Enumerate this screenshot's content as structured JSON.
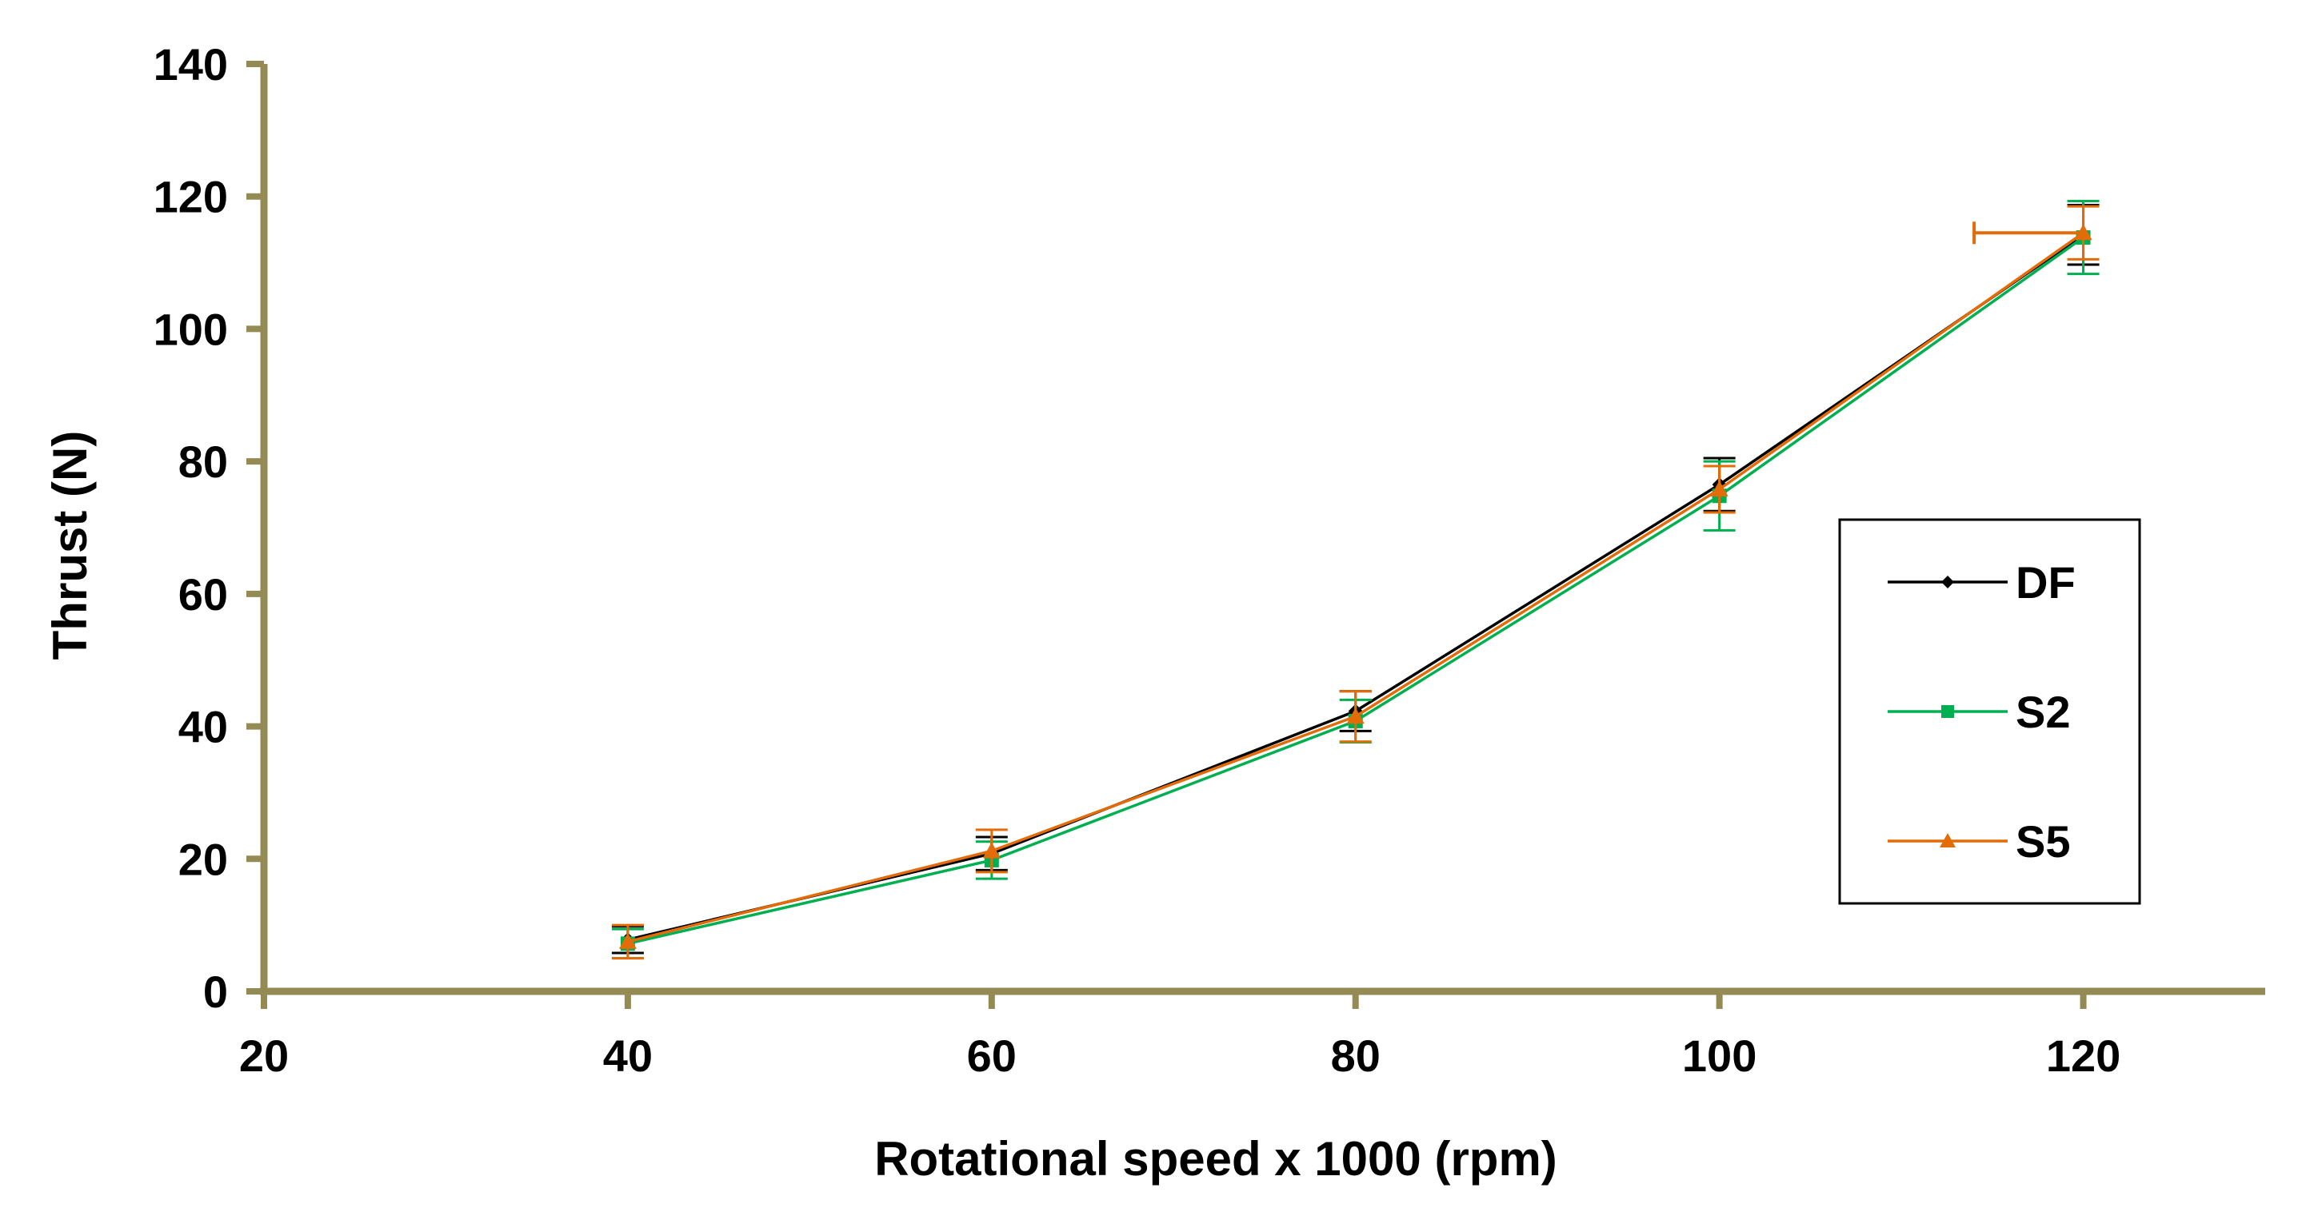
{
  "chart_data": {
    "type": "line",
    "title": "",
    "xlabel": "Rotational speed x 1000 (rpm)",
    "ylabel": "Thrust (N)",
    "xlim": [
      20,
      130
    ],
    "ylim": [
      0,
      140
    ],
    "xticks": [
      20,
      40,
      60,
      80,
      100,
      120
    ],
    "yticks": [
      0,
      20,
      40,
      60,
      80,
      100,
      120,
      140
    ],
    "grid": false,
    "legend_position": "right",
    "axis_color": "#948A54",
    "series": [
      {
        "name": "DF",
        "color": "#000000",
        "marker": "diamond",
        "x": [
          40,
          60,
          80,
          100,
          120
        ],
        "y": [
          7.8,
          20.8,
          42.3,
          76.5,
          114.2
        ],
        "err": [
          2.0,
          2.5,
          3.0,
          4.0,
          4.5
        ]
      },
      {
        "name": "S2",
        "color": "#00B050",
        "marker": "square",
        "x": [
          40,
          60,
          80,
          100,
          120
        ],
        "y": [
          7.2,
          19.8,
          40.8,
          74.8,
          113.8
        ],
        "err": [
          2.2,
          2.8,
          3.2,
          5.2,
          5.5
        ]
      },
      {
        "name": "S5",
        "color": "#E36C09",
        "marker": "triangle",
        "x": [
          40,
          60,
          80,
          100,
          120
        ],
        "y": [
          7.5,
          21.2,
          41.5,
          75.8,
          114.5
        ],
        "err": [
          2.5,
          3.2,
          3.8,
          3.5,
          4.0
        ],
        "xerr_last": 6
      }
    ]
  }
}
